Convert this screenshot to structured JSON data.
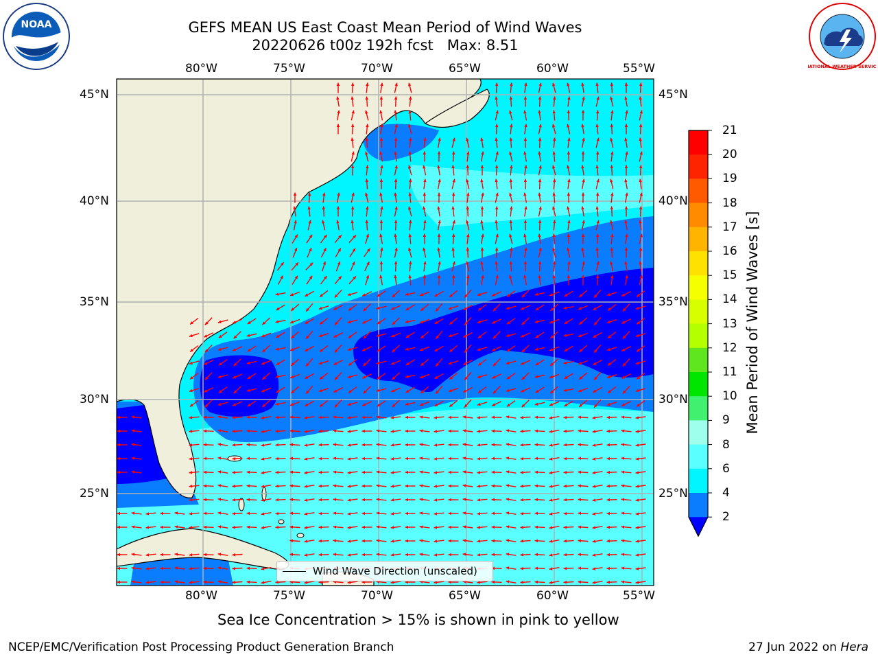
{
  "title_line1": "GEFS MEAN US East Coast Mean Period of Wind Waves",
  "title_line2": "20220626 t00z 192h fcst   Max: 8.51",
  "logos": {
    "left": {
      "icon": "noaa-logo",
      "text": "NOAA"
    },
    "right": {
      "icon": "national-weather-service-logo",
      "text": "NATIONAL WEATHER SERVICE"
    }
  },
  "map": {
    "lon_ticks": [
      "80°W",
      "75°W",
      "70°W",
      "65°W",
      "60°W",
      "55°W"
    ],
    "lat_ticks": [
      "45°N",
      "40°N",
      "35°N",
      "30°N",
      "25°N"
    ],
    "land_color": "#efefdb",
    "arrow_color": "#ff0000",
    "grid_color": "#b0b0b0"
  },
  "colorbar": {
    "label": "Mean Period of Wind Waves [s]",
    "ticks": [
      "21",
      "20",
      "19",
      "18",
      "17",
      "16",
      "15",
      "14",
      "13",
      "12",
      "11",
      "10",
      "9",
      "8",
      "6",
      "4",
      "2"
    ],
    "bands": [
      {
        "range": "20-21",
        "color": "#ff0000"
      },
      {
        "range": "19-20",
        "color": "#ff2400"
      },
      {
        "range": "18-19",
        "color": "#ff5a00"
      },
      {
        "range": "17-18",
        "color": "#ff8c00"
      },
      {
        "range": "16-17",
        "color": "#ffb400"
      },
      {
        "range": "15-16",
        "color": "#ffe100"
      },
      {
        "range": "14-15",
        "color": "#f5ff00"
      },
      {
        "range": "13-14",
        "color": "#d7ff00"
      },
      {
        "range": "12-13",
        "color": "#b4ff00"
      },
      {
        "range": "11-12",
        "color": "#5fe61e"
      },
      {
        "range": "10-11",
        "color": "#00e600"
      },
      {
        "range": "9-10",
        "color": "#40f06e"
      },
      {
        "range": "8-9",
        "color": "#9effec"
      },
      {
        "range": "6-8",
        "color": "#5affff"
      },
      {
        "range": "4-6",
        "color": "#00f5ff"
      },
      {
        "range": "2-4",
        "color": "#0a7dff"
      },
      {
        "range": "<2",
        "color": "#0000ff"
      }
    ]
  },
  "legend_label": "Wind Wave Direction (unscaled)",
  "subcaption": "Sea Ice Concentration > 15% is shown in pink to yellow",
  "footer_left": "NCEP/EMC/Verification Post Processing Product Generation Branch",
  "footer_right_date": "27 Jun 2022 on",
  "footer_right_host": "Hera"
}
